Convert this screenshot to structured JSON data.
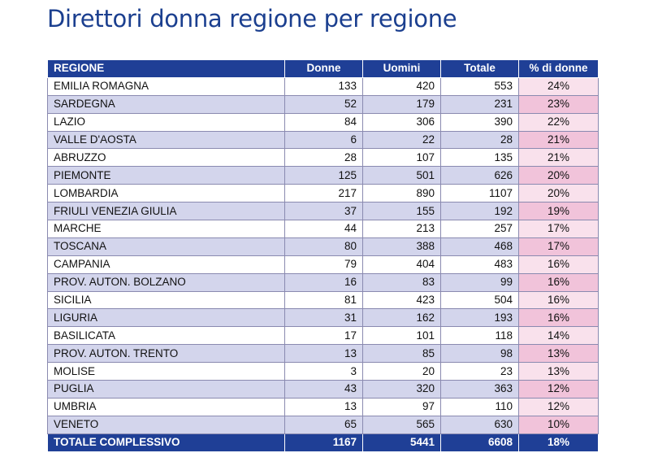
{
  "title": "Direttori donna regione per regione",
  "table": {
    "headers": {
      "region": "REGIONE",
      "women": "Donne",
      "men": "Uomini",
      "total": "Totale",
      "pct": "% di donne"
    },
    "rows": [
      {
        "region": "EMILIA ROMAGNA",
        "women": "133",
        "men": "420",
        "total": "553",
        "pct": "24%"
      },
      {
        "region": "SARDEGNA",
        "women": "52",
        "men": "179",
        "total": "231",
        "pct": "23%"
      },
      {
        "region": "LAZIO",
        "women": "84",
        "men": "306",
        "total": "390",
        "pct": "22%"
      },
      {
        "region": "VALLE D'AOSTA",
        "women": "6",
        "men": "22",
        "total": "28",
        "pct": "21%"
      },
      {
        "region": "ABRUZZO",
        "women": "28",
        "men": "107",
        "total": "135",
        "pct": "21%"
      },
      {
        "region": "PIEMONTE",
        "women": "125",
        "men": "501",
        "total": "626",
        "pct": "20%"
      },
      {
        "region": "LOMBARDIA",
        "women": "217",
        "men": "890",
        "total": "1107",
        "pct": "20%"
      },
      {
        "region": "FRIULI VENEZIA GIULIA",
        "women": "37",
        "men": "155",
        "total": "192",
        "pct": "19%"
      },
      {
        "region": "MARCHE",
        "women": "44",
        "men": "213",
        "total": "257",
        "pct": "17%"
      },
      {
        "region": "TOSCANA",
        "women": "80",
        "men": "388",
        "total": "468",
        "pct": "17%"
      },
      {
        "region": "CAMPANIA",
        "women": "79",
        "men": "404",
        "total": "483",
        "pct": "16%"
      },
      {
        "region": "PROV. AUTON. BOLZANO",
        "women": "16",
        "men": "83",
        "total": "99",
        "pct": "16%"
      },
      {
        "region": "SICILIA",
        "women": "81",
        "men": "423",
        "total": "504",
        "pct": "16%"
      },
      {
        "region": "LIGURIA",
        "women": "31",
        "men": "162",
        "total": "193",
        "pct": "16%"
      },
      {
        "region": "BASILICATA",
        "women": "17",
        "men": "101",
        "total": "118",
        "pct": "14%"
      },
      {
        "region": "PROV. AUTON. TRENTO",
        "women": "13",
        "men": "85",
        "total": "98",
        "pct": "13%"
      },
      {
        "region": "MOLISE",
        "women": "3",
        "men": "20",
        "total": "23",
        "pct": "13%"
      },
      {
        "region": "PUGLIA",
        "women": "43",
        "men": "320",
        "total": "363",
        "pct": "12%"
      },
      {
        "region": "UMBRIA",
        "women": "13",
        "men": "97",
        "total": "110",
        "pct": "12%"
      },
      {
        "region": "VENETO",
        "women": "65",
        "men": "565",
        "total": "630",
        "pct": "10%"
      }
    ],
    "total": {
      "region": "TOTALE COMPLESSIVO",
      "women": "1167",
      "men": "5441",
      "total": "6608",
      "pct": "18%"
    }
  },
  "colors": {
    "title": "#1b3f8f",
    "header_bg": "#1f3f96",
    "row_shade": "#d3d5ec",
    "pct_shade": "#f1c3da"
  }
}
